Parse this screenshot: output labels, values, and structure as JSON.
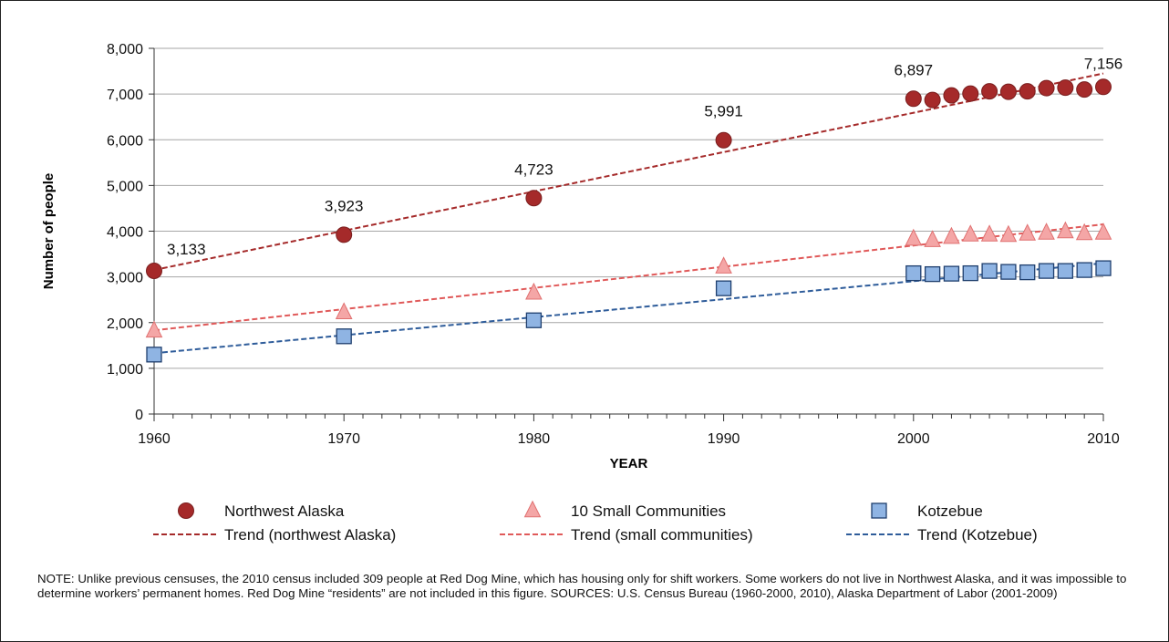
{
  "chart_data": {
    "type": "scatter",
    "xlabel": "YEAR",
    "ylabel": "Number of people",
    "xlim": [
      1960,
      2010
    ],
    "ylim": [
      0,
      8000
    ],
    "x_ticks": [
      1960,
      1970,
      1980,
      1990,
      2000,
      2010
    ],
    "x_tick_labels": [
      "1960",
      "1970",
      "1980",
      "1990",
      "2000",
      "2010"
    ],
    "y_ticks": [
      0,
      1000,
      2000,
      3000,
      4000,
      5000,
      6000,
      7000,
      8000
    ],
    "y_tick_labels": [
      "0",
      "1,000",
      "2,000",
      "3,000",
      "4,000",
      "5,000",
      "6,000",
      "7,000",
      "8,000"
    ],
    "grid": "horizontal",
    "legend_position": "bottom",
    "series": [
      {
        "name": "Northwest Alaska",
        "marker": "circle",
        "color": "#a52a2a",
        "points": [
          [
            1960,
            3133
          ],
          [
            1970,
            3923
          ],
          [
            1980,
            4723
          ],
          [
            1990,
            5991
          ],
          [
            2000,
            6897
          ],
          [
            2001,
            6870
          ],
          [
            2002,
            6970
          ],
          [
            2003,
            7010
          ],
          [
            2004,
            7060
          ],
          [
            2005,
            7050
          ],
          [
            2006,
            7060
          ],
          [
            2007,
            7130
          ],
          [
            2008,
            7140
          ],
          [
            2009,
            7100
          ],
          [
            2010,
            7156
          ]
        ]
      },
      {
        "name": "10 Small Communities",
        "marker": "triangle",
        "color": "#f4a6a6",
        "points": [
          [
            1960,
            1820
          ],
          [
            1970,
            2220
          ],
          [
            1980,
            2650
          ],
          [
            1990,
            3220
          ],
          [
            2000,
            3830
          ],
          [
            2001,
            3800
          ],
          [
            2002,
            3870
          ],
          [
            2003,
            3920
          ],
          [
            2004,
            3920
          ],
          [
            2005,
            3910
          ],
          [
            2006,
            3940
          ],
          [
            2007,
            3960
          ],
          [
            2008,
            3990
          ],
          [
            2009,
            3950
          ],
          [
            2010,
            3960
          ]
        ]
      },
      {
        "name": "Kotzebue",
        "marker": "square",
        "color": "#8fb4e3",
        "points": [
          [
            1960,
            1300
          ],
          [
            1970,
            1700
          ],
          [
            1980,
            2050
          ],
          [
            1990,
            2750
          ],
          [
            2000,
            3080
          ],
          [
            2001,
            3060
          ],
          [
            2002,
            3070
          ],
          [
            2003,
            3080
          ],
          [
            2004,
            3130
          ],
          [
            2005,
            3110
          ],
          [
            2006,
            3100
          ],
          [
            2007,
            3130
          ],
          [
            2008,
            3130
          ],
          [
            2009,
            3150
          ],
          [
            2010,
            3190
          ]
        ]
      }
    ],
    "trends": [
      {
        "name": "Trend (northwest Alaska)",
        "color": "#a52a2a",
        "start": [
          1960,
          3150
        ],
        "end": [
          2010,
          7450
        ]
      },
      {
        "name": "Trend (small communities)",
        "color": "#e05a5a",
        "start": [
          1960,
          1830
        ],
        "end": [
          2010,
          4150
        ]
      },
      {
        "name": "Trend (Kotzebue)",
        "color": "#2e5c9a",
        "start": [
          1960,
          1330
        ],
        "end": [
          2010,
          3300
        ]
      }
    ],
    "data_labels": [
      {
        "x": 1960,
        "y": 3133,
        "text": "3,133"
      },
      {
        "x": 1970,
        "y": 3923,
        "text": "3,923"
      },
      {
        "x": 1980,
        "y": 4723,
        "text": "4,723"
      },
      {
        "x": 1990,
        "y": 5991,
        "text": "5,991"
      },
      {
        "x": 2000,
        "y": 6897,
        "text": "6,897"
      },
      {
        "x": 2010,
        "y": 7156,
        "text": "7,156"
      }
    ]
  },
  "note": "NOTE: Unlike previous censuses, the 2010 census included 309 people at Red Dog Mine, which has housing only for shift workers. Some workers do not live in Northwest Alaska, and it was impossible to determine workers’ permanent homes. Red Dog Mine “residents” are not included in this figure. SOURCES: U.S. Census Bureau (1960-2000, 2010), Alaska Department of Labor (2001-2009)"
}
